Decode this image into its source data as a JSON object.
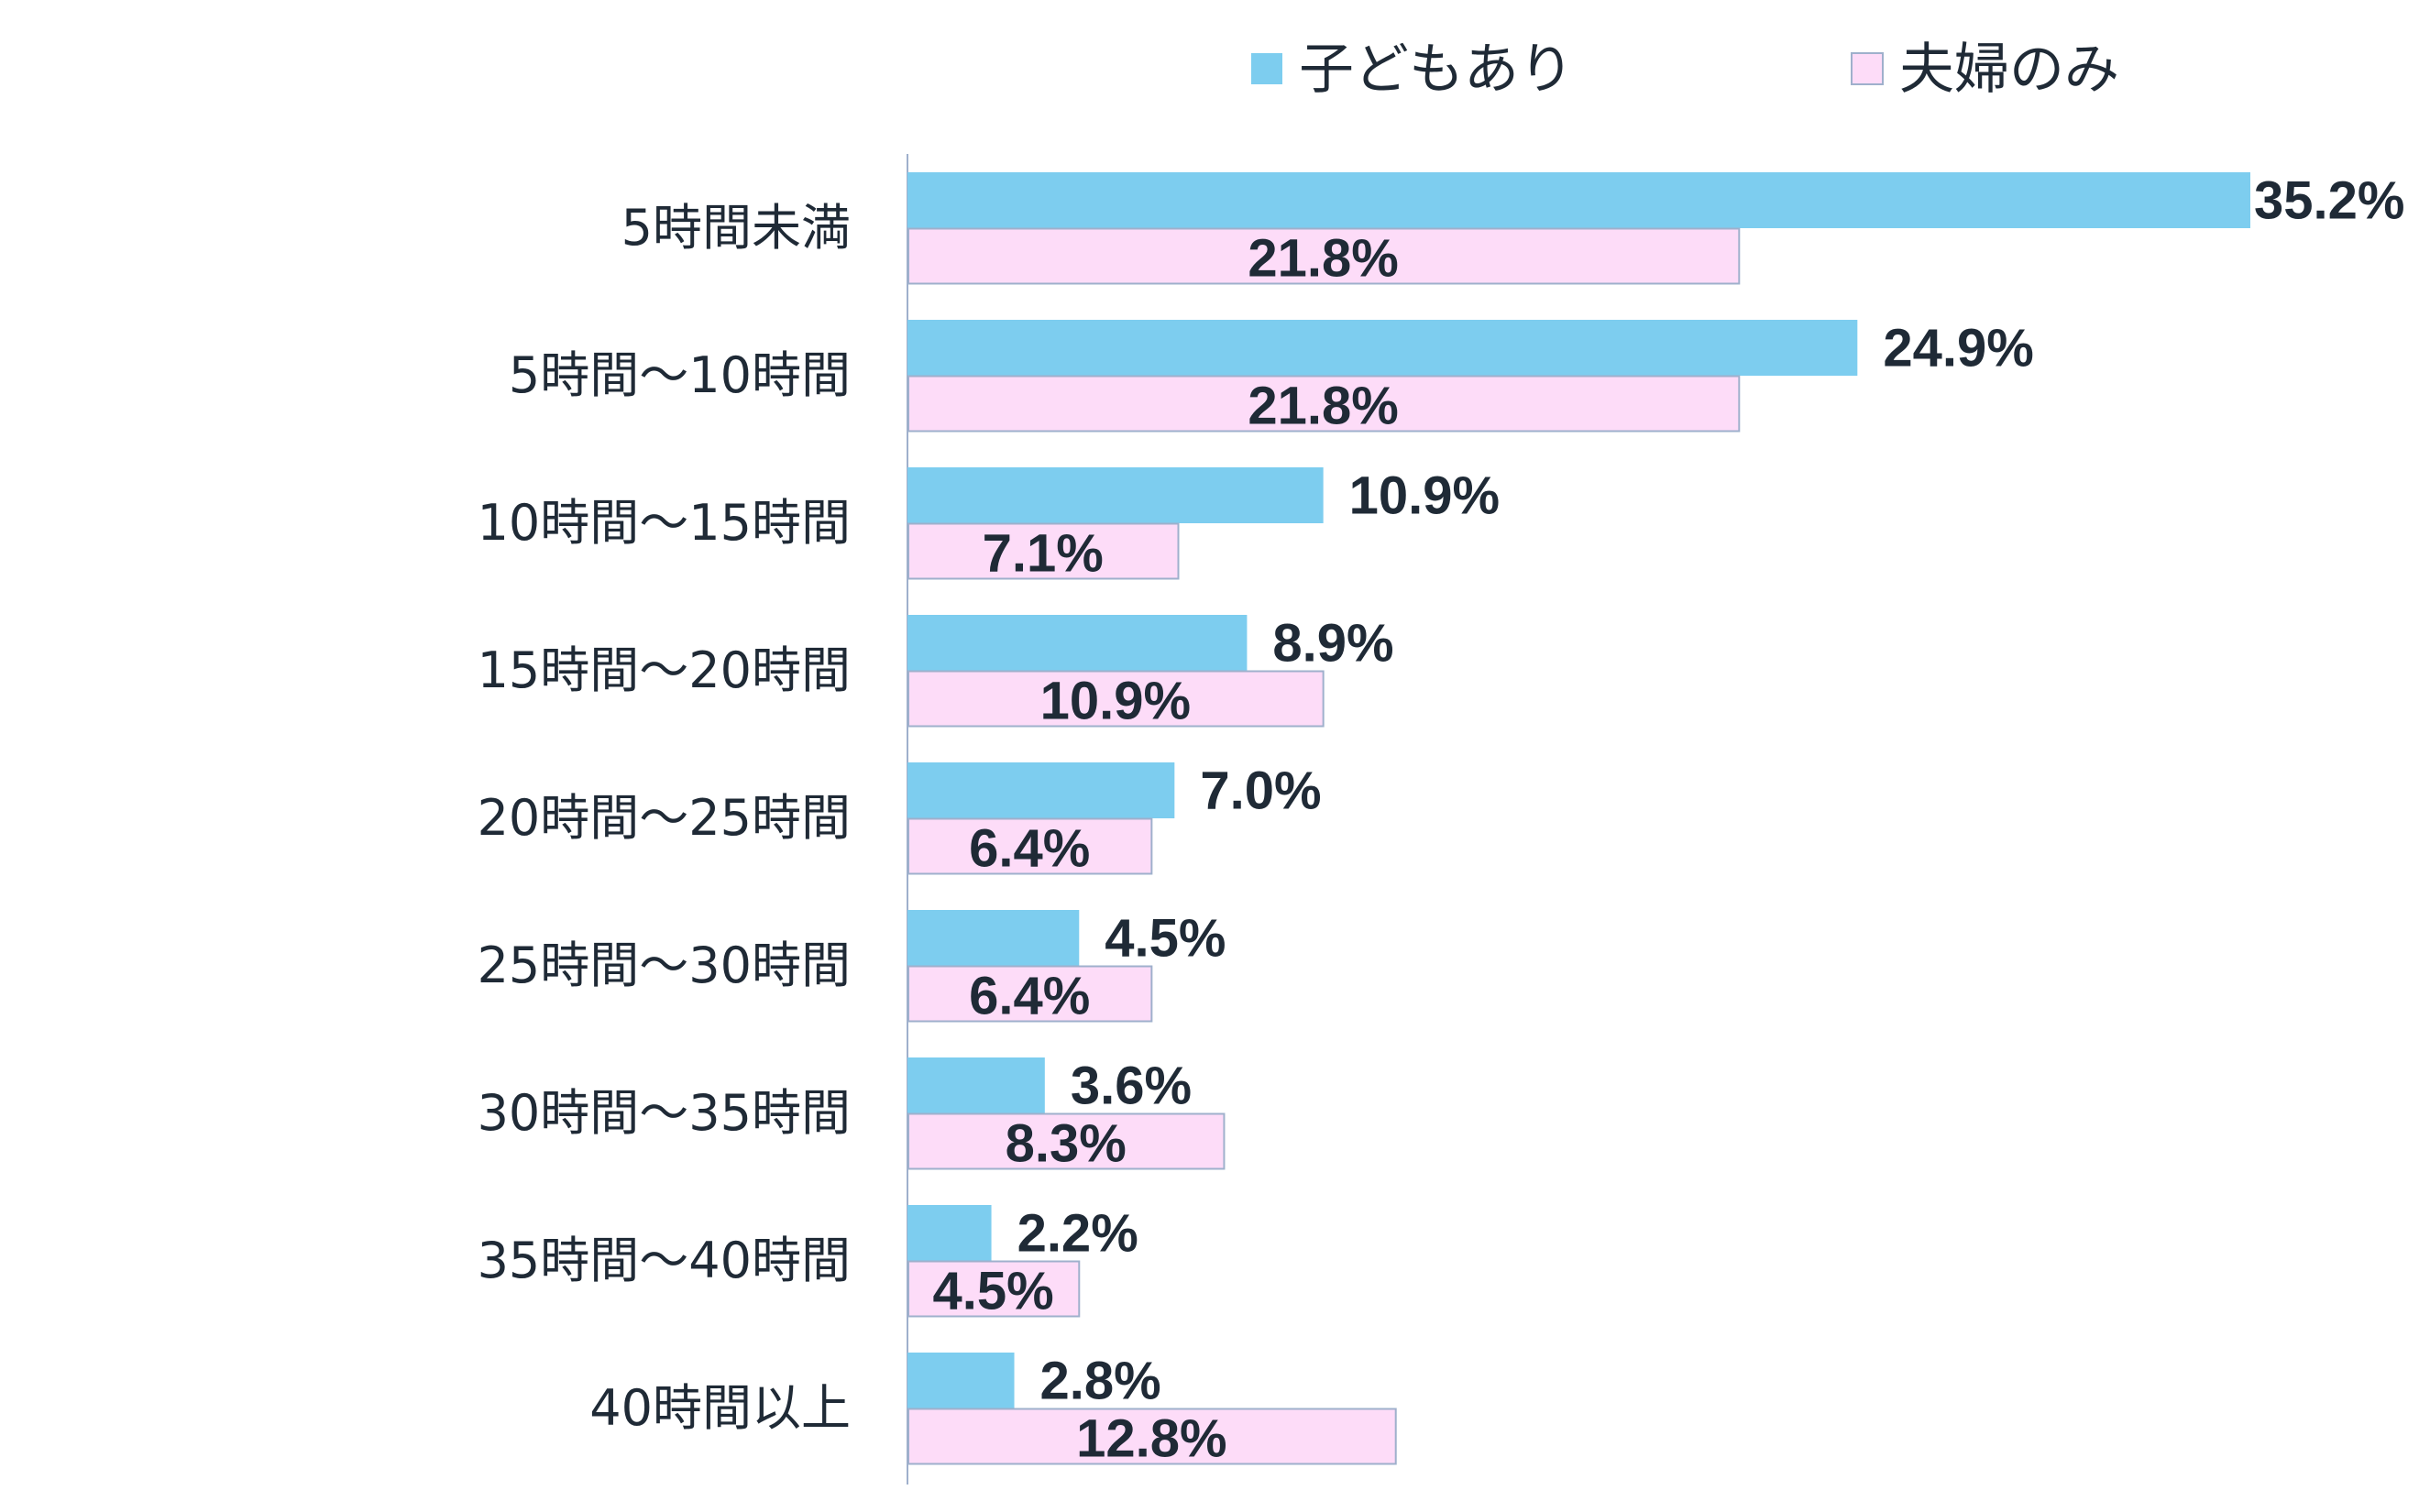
{
  "chart_data": {
    "type": "bar",
    "orientation": "horizontal",
    "categories": [
      "5時間未満",
      "5時間〜10時間",
      "10時間〜15時間",
      "15時間〜20時間",
      "20時間〜25時間",
      "25時間〜30時間",
      "30時間〜35時間",
      "35時間〜40時間",
      "40時間以上"
    ],
    "series": [
      {
        "name": "子どもあり",
        "color": "#7dcdef",
        "values": [
          35.2,
          24.9,
          10.9,
          8.9,
          7.0,
          4.5,
          3.6,
          2.2,
          2.8
        ],
        "labels": [
          "35.2%",
          "24.9%",
          "10.9%",
          "8.9%",
          "7.0%",
          "4.5%",
          "3.6%",
          "2.2%",
          "2.8%"
        ]
      },
      {
        "name": "夫婦のみ",
        "color": "#fddcf8",
        "border_color": "#9fb0cc",
        "values": [
          21.8,
          21.8,
          7.1,
          10.9,
          6.4,
          6.4,
          8.3,
          4.5,
          12.8
        ],
        "labels": [
          "21.8%",
          "21.8%",
          "7.1%",
          "10.9%",
          "6.4%",
          "6.4%",
          "8.3%",
          "4.5%",
          "12.8%"
        ]
      }
    ],
    "xlim": [
      0,
      35.2
    ],
    "grid": false,
    "legend_position": "top"
  }
}
